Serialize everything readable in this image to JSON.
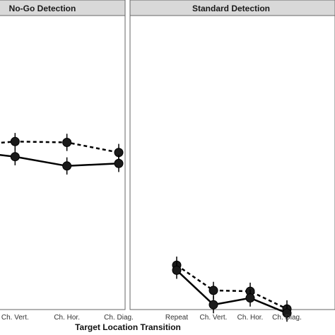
{
  "chart_data": {
    "type": "line",
    "xlabel": "Target Location Transition",
    "ylabel": "",
    "categories": [
      "Repeat",
      "Ch. Vert.",
      "Ch. Hor.",
      "Ch. Diag."
    ],
    "panels": [
      {
        "title": "No-Go Detection",
        "series": [
          {
            "style": "dashed",
            "values": [
              0.72,
              0.745,
              0.74,
              0.68
            ]
          },
          {
            "style": "solid",
            "values": [
              0.69,
              0.655,
              0.6,
              0.615
            ]
          }
        ]
      },
      {
        "title": "Standard Detection",
        "series": [
          {
            "style": "dashed",
            "values": [
              0.01,
              -0.14,
              -0.145,
              -0.25
            ]
          },
          {
            "style": "solid",
            "values": [
              -0.02,
              -0.225,
              -0.185,
              -0.275
            ]
          }
        ]
      }
    ],
    "error_bar": 0.035,
    "grid": false,
    "legend": "none"
  },
  "colors": {
    "strip_fill": "#d9d9d9",
    "panel_border": "#666666",
    "line": "#000000",
    "marker_fill": "#1a1a1a"
  }
}
